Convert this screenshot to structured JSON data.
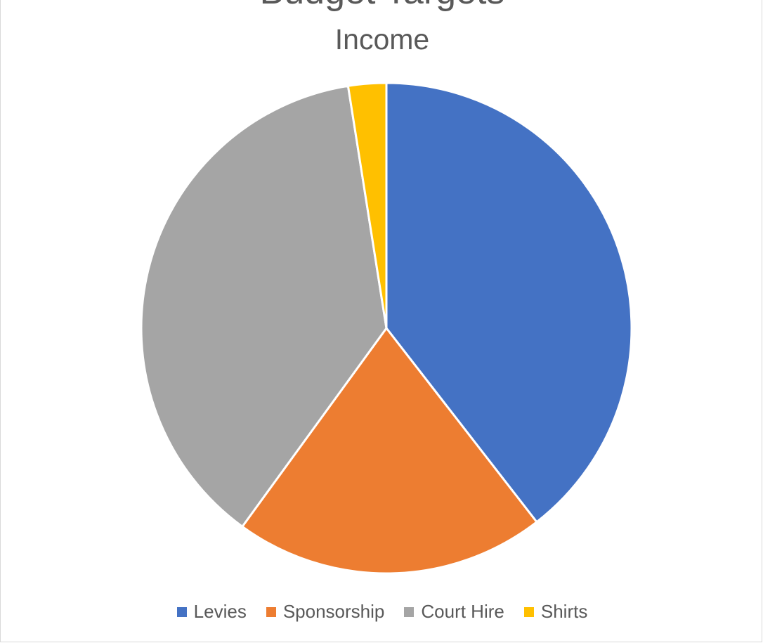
{
  "heading_clipped": "Budget Targets",
  "chart_data": {
    "type": "pie",
    "title": "Income",
    "categories": [
      "Levies",
      "Sponsorship",
      "Court Hire",
      "Shirts"
    ],
    "values": [
      39.5,
      20.5,
      37.5,
      2.5
    ],
    "colors": [
      "#4472C4",
      "#ED7D31",
      "#A5A5A5",
      "#FFC000"
    ],
    "legend_position": "bottom"
  }
}
